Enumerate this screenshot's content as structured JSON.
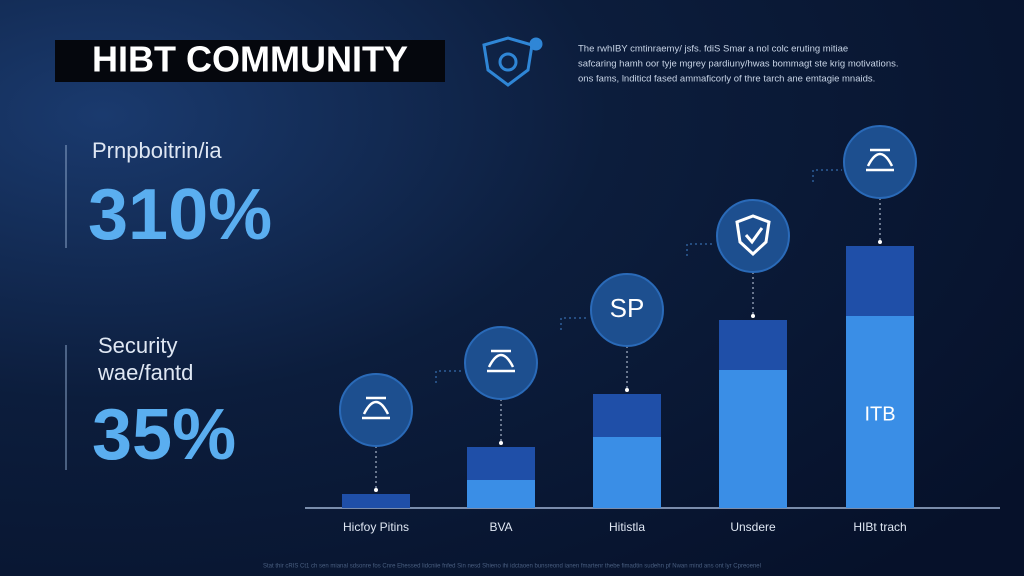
{
  "header": {
    "title": "HIBT COMMUNITY",
    "description": [
      "The rwhIBY cmtinraemy/ jsfs. fdiS Smar a nol colc eruting mitiae",
      "safcaring hamh oor tyje mgrey pardiuny/hwas bommagt ste krig motivations.",
      "ons fams, lnditicd fased ammaficorly of thre tarch ane emtagie mnaids."
    ]
  },
  "stats": [
    {
      "label": "Prnpboitrin/ia",
      "value": "310%"
    },
    {
      "label": [
        "Security",
        "wae/fantd"
      ],
      "value": "35%"
    }
  ],
  "footer": "Stat thir  cRIS Ct1  ch sen mianal sdsonre fos Cnre Ehessed lidcniie fnfed Sin nesd Shieno ihi idctaoen bunsreond ianen fmartenr thebe fimadtin sudehn pf Nwan mind ans ont lyr Cpreoenel",
  "chart_data": {
    "type": "bar",
    "stacked": true,
    "categories": [
      "Hicfoy Pitins",
      "BVA",
      "Hitistla",
      "Unsdere",
      "HIBt trach"
    ],
    "series": [
      {
        "color": "#3a8ee6",
        "values": [
          0,
          28,
          71,
          138,
          192
        ]
      },
      {
        "color": "#1f4fa8",
        "values": [
          14,
          33,
          43,
          50,
          70
        ]
      }
    ],
    "ylim": [
      0,
      280
    ],
    "icon_label": "SP",
    "bar_label": "ITB"
  }
}
